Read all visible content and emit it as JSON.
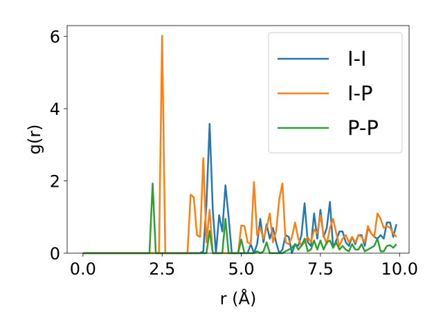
{
  "chart_data": {
    "type": "line",
    "xlabel": "r (Å)",
    "ylabel": "g(r)",
    "xlim": [
      -0.5,
      10.3
    ],
    "ylim": [
      0,
      6.3
    ],
    "xticks": [
      0,
      2.5,
      5,
      7.5,
      10
    ],
    "xtick_labels": [
      "0.0",
      "2.5",
      "5.0",
      "7.5",
      "10.0"
    ],
    "yticks": [
      0,
      2,
      4,
      6
    ],
    "ytick_labels": [
      "0",
      "2",
      "4",
      "6"
    ],
    "grid": false,
    "legend_position": "top-right",
    "series": [
      {
        "name": "I-I",
        "color": "#1f77b4",
        "points": [
          [
            0,
            0
          ],
          [
            3.7,
            0
          ],
          [
            3.8,
            0.05
          ],
          [
            3.9,
            1.35
          ],
          [
            4.0,
            3.58
          ],
          [
            4.1,
            1.2
          ],
          [
            4.2,
            0
          ],
          [
            4.3,
            1.05
          ],
          [
            4.4,
            0.6
          ],
          [
            4.5,
            1.88
          ],
          [
            4.6,
            1.0
          ],
          [
            4.7,
            0
          ],
          [
            5.0,
            0
          ],
          [
            5.2,
            0
          ],
          [
            5.3,
            0.25
          ],
          [
            5.4,
            0
          ],
          [
            5.5,
            0.25
          ],
          [
            5.6,
            0.95
          ],
          [
            5.7,
            0.3
          ],
          [
            5.8,
            0.8
          ],
          [
            5.9,
            0.4
          ],
          [
            6.0,
            0.7
          ],
          [
            6.1,
            0.3
          ],
          [
            6.2,
            0
          ],
          [
            6.3,
            0.1
          ],
          [
            6.4,
            0.5
          ],
          [
            6.5,
            0.45
          ],
          [
            6.6,
            0
          ],
          [
            6.7,
            0.25
          ],
          [
            6.8,
            0.2
          ],
          [
            6.9,
            0.5
          ],
          [
            7.0,
            1.38
          ],
          [
            7.1,
            0.3
          ],
          [
            7.2,
            0.2
          ],
          [
            7.3,
            1.1
          ],
          [
            7.4,
            0.4
          ],
          [
            7.5,
            1.2
          ],
          [
            7.6,
            0.45
          ],
          [
            7.7,
            0.7
          ],
          [
            7.8,
            1.42
          ],
          [
            7.9,
            0.15
          ],
          [
            8.0,
            0.35
          ],
          [
            8.1,
            0.6
          ],
          [
            8.2,
            0.6
          ],
          [
            8.3,
            0.3
          ],
          [
            8.4,
            0.2
          ],
          [
            8.5,
            0.45
          ],
          [
            8.6,
            0.25
          ],
          [
            8.7,
            0.5
          ],
          [
            8.8,
            0.5
          ],
          [
            8.9,
            0.2
          ],
          [
            9.0,
            0.7
          ],
          [
            9.1,
            0.55
          ],
          [
            9.2,
            0.45
          ],
          [
            9.3,
            0.4
          ],
          [
            9.4,
            0.5
          ],
          [
            9.5,
            0.4
          ],
          [
            9.6,
            0.85
          ],
          [
            9.7,
            0.85
          ],
          [
            9.8,
            0.45
          ],
          [
            9.9,
            0.8
          ]
        ]
      },
      {
        "name": "I-P",
        "color": "#ff7f0e",
        "points": [
          [
            0,
            0
          ],
          [
            2.4,
            0
          ],
          [
            2.5,
            6.02
          ],
          [
            2.6,
            0
          ],
          [
            3.3,
            0
          ],
          [
            3.4,
            1.62
          ],
          [
            3.5,
            1.55
          ],
          [
            3.6,
            0.5
          ],
          [
            3.7,
            0.45
          ],
          [
            3.8,
            2.63
          ],
          [
            3.9,
            0.3
          ],
          [
            4.0,
            1.2
          ],
          [
            4.1,
            0
          ],
          [
            4.8,
            0
          ],
          [
            4.9,
            0
          ],
          [
            5.0,
            0.77
          ],
          [
            5.1,
            0.75
          ],
          [
            5.2,
            0.3
          ],
          [
            5.3,
            0.25
          ],
          [
            5.4,
            1.97
          ],
          [
            5.5,
            0.5
          ],
          [
            5.6,
            0.7
          ],
          [
            5.7,
            0.4
          ],
          [
            5.8,
            0.7
          ],
          [
            5.9,
            1.1
          ],
          [
            6.0,
            0.3
          ],
          [
            6.1,
            0.6
          ],
          [
            6.2,
            1.5
          ],
          [
            6.3,
            1.93
          ],
          [
            6.4,
            0.3
          ],
          [
            6.5,
            0.25
          ],
          [
            6.6,
            0.45
          ],
          [
            6.7,
            0.85
          ],
          [
            6.8,
            0.4
          ],
          [
            6.9,
            0.2
          ],
          [
            7.0,
            0.3
          ],
          [
            7.1,
            0.45
          ],
          [
            7.2,
            0.3
          ],
          [
            7.3,
            0.65
          ],
          [
            7.4,
            0.55
          ],
          [
            7.5,
            1.05
          ],
          [
            7.6,
            0.5
          ],
          [
            7.7,
            0.25
          ],
          [
            7.8,
            0.7
          ],
          [
            7.9,
            0.95
          ],
          [
            8.0,
            0.55
          ],
          [
            8.1,
            0.2
          ],
          [
            8.2,
            0.4
          ],
          [
            8.3,
            0.5
          ],
          [
            8.4,
            0.3
          ],
          [
            8.5,
            0.45
          ],
          [
            8.6,
            0.3
          ],
          [
            8.7,
            0.5
          ],
          [
            8.8,
            0.45
          ],
          [
            8.9,
            0.3
          ],
          [
            9.0,
            0.75
          ],
          [
            9.1,
            0.55
          ],
          [
            9.2,
            0.45
          ],
          [
            9.3,
            1.1
          ],
          [
            9.4,
            0.95
          ],
          [
            9.5,
            0.7
          ],
          [
            9.6,
            0.75
          ],
          [
            9.7,
            0.7
          ],
          [
            9.8,
            0.55
          ],
          [
            9.9,
            0.45
          ]
        ]
      },
      {
        "name": "P-P",
        "color": "#2ca02c",
        "points": [
          [
            0,
            0
          ],
          [
            2.1,
            0
          ],
          [
            2.2,
            1.93
          ],
          [
            2.3,
            0
          ],
          [
            3.9,
            0
          ],
          [
            4.0,
            0.62
          ],
          [
            4.1,
            0
          ],
          [
            4.4,
            0
          ],
          [
            4.5,
            0.95
          ],
          [
            4.6,
            0
          ],
          [
            4.9,
            0
          ],
          [
            5.0,
            0.38
          ],
          [
            5.1,
            0
          ],
          [
            5.4,
            0
          ],
          [
            5.5,
            0.05
          ],
          [
            5.6,
            0
          ],
          [
            5.7,
            0.05
          ],
          [
            5.8,
            0.3
          ],
          [
            5.9,
            0
          ],
          [
            6.3,
            0
          ],
          [
            6.4,
            0.05
          ],
          [
            6.5,
            0.1
          ],
          [
            6.6,
            0.15
          ],
          [
            6.7,
            0.25
          ],
          [
            6.8,
            0.1
          ],
          [
            6.9,
            0.2
          ],
          [
            7.0,
            0.4
          ],
          [
            7.1,
            0.05
          ],
          [
            7.2,
            0.1
          ],
          [
            7.3,
            0.35
          ],
          [
            7.4,
            0.1
          ],
          [
            7.5,
            0.35
          ],
          [
            7.6,
            0.1
          ],
          [
            7.7,
            0.3
          ],
          [
            7.8,
            0.35
          ],
          [
            7.9,
            0.15
          ],
          [
            8.0,
            0.3
          ],
          [
            8.1,
            0.1
          ],
          [
            8.2,
            0.2
          ],
          [
            8.3,
            0.1
          ],
          [
            8.4,
            0.05
          ],
          [
            8.5,
            0.25
          ],
          [
            8.6,
            0.1
          ],
          [
            8.7,
            0.1
          ],
          [
            8.8,
            0.25
          ],
          [
            8.9,
            0.05
          ],
          [
            9.0,
            0.1
          ],
          [
            9.1,
            0.15
          ],
          [
            9.2,
            0.2
          ],
          [
            9.3,
            0.4
          ],
          [
            9.4,
            0.05
          ],
          [
            9.5,
            0.05
          ],
          [
            9.6,
            0.2
          ],
          [
            9.7,
            0.22
          ],
          [
            9.8,
            0.15
          ],
          [
            9.9,
            0.25
          ]
        ]
      }
    ]
  }
}
